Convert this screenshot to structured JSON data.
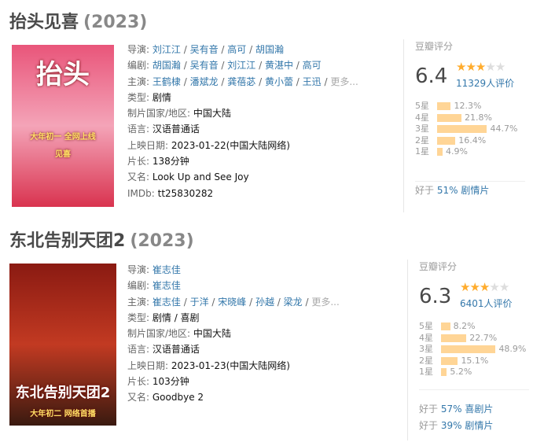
{
  "movies": [
    {
      "title": "抬头见喜",
      "year": "(2023)",
      "poster": {
        "colors": [
          "#e9557a",
          "#f4a4b8",
          "#d9334f"
        ],
        "texts": [
          "抬头",
          "见喜",
          "大年初一 全网上线"
        ]
      },
      "info": [
        {
          "label": "导演",
          "links": [
            "刘江江",
            "吴有音",
            "高可",
            "胡国瀚"
          ]
        },
        {
          "label": "编剧",
          "links": [
            "胡国瀚",
            "吴有音",
            "刘江江",
            "黄湛中",
            "高可"
          ]
        },
        {
          "label": "主演",
          "links": [
            "王鹤棣",
            "潘斌龙",
            "龚蓓苾",
            "黄小蕾",
            "王迅"
          ],
          "more": "更多..."
        },
        {
          "label": "类型",
          "value": "剧情"
        },
        {
          "label": "制片国家/地区",
          "value": "中国大陆"
        },
        {
          "label": "语言",
          "value": "汉语普通话"
        },
        {
          "label": "上映日期",
          "value": "2023-01-22(中国大陆网络)"
        },
        {
          "label": "片长",
          "value": "138分钟"
        },
        {
          "label": "又名",
          "value": "Look Up and See Joy"
        },
        {
          "label": "IMDb",
          "value": "tt25830282"
        }
      ],
      "rating": {
        "header": "豆瓣评分",
        "score": "6.4",
        "stars": 3,
        "votes": "11329人评价",
        "distribution": [
          {
            "label": "5星",
            "pct": 12.3,
            "text": "12.3%"
          },
          {
            "label": "4星",
            "pct": 21.8,
            "text": "21.8%"
          },
          {
            "label": "3星",
            "pct": 44.7,
            "text": "44.7%"
          },
          {
            "label": "2星",
            "pct": 16.4,
            "text": "16.4%"
          },
          {
            "label": "1星",
            "pct": 4.9,
            "text": "4.9%"
          }
        ],
        "better_than": [
          {
            "prefix": "好于",
            "pct": "51%",
            "genre": "剧情片"
          }
        ]
      }
    },
    {
      "title": "东北告别天团2",
      "year": "(2023)",
      "poster": {
        "colors": [
          "#8a1a12",
          "#c23a22",
          "#3a1a10"
        ],
        "texts": [
          "东北告别天团2",
          "大年初二 网络首播"
        ]
      },
      "info": [
        {
          "label": "导演",
          "links": [
            "崔志佳"
          ]
        },
        {
          "label": "编剧",
          "links": [
            "崔志佳"
          ]
        },
        {
          "label": "主演",
          "links": [
            "崔志佳",
            "于洋",
            "宋晓峰",
            "孙越",
            "梁龙"
          ],
          "more": "更多..."
        },
        {
          "label": "类型",
          "value": "剧情 / 喜剧"
        },
        {
          "label": "制片国家/地区",
          "value": "中国大陆"
        },
        {
          "label": "语言",
          "value": "汉语普通话"
        },
        {
          "label": "上映日期",
          "value": "2023-01-23(中国大陆网络)"
        },
        {
          "label": "片长",
          "value": "103分钟"
        },
        {
          "label": "又名",
          "value": "Goodbye 2"
        }
      ],
      "rating": {
        "header": "豆瓣评分",
        "score": "6.3",
        "stars": 3,
        "votes": "6401人评价",
        "distribution": [
          {
            "label": "5星",
            "pct": 8.2,
            "text": "8.2%"
          },
          {
            "label": "4星",
            "pct": 22.7,
            "text": "22.7%"
          },
          {
            "label": "3星",
            "pct": 48.9,
            "text": "48.9%"
          },
          {
            "label": "2星",
            "pct": 15.1,
            "text": "15.1%"
          },
          {
            "label": "1星",
            "pct": 5.2,
            "text": "5.2%"
          }
        ],
        "better_than": [
          {
            "prefix": "好于",
            "pct": "57%",
            "genre": "喜剧片"
          },
          {
            "prefix": "好于",
            "pct": "39%",
            "genre": "剧情片"
          }
        ]
      }
    }
  ]
}
